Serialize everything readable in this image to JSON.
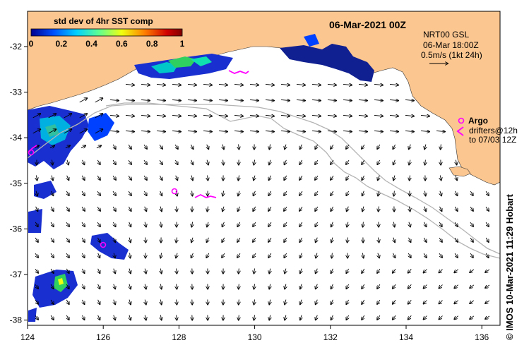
{
  "title": "06-Mar-2021 00Z",
  "colorbar": {
    "label": "std dev of 4hr SST comp",
    "ticks": [
      "0",
      "0.2",
      "0.4",
      "0.6",
      "0.8",
      "1"
    ],
    "stops": [
      "#00008f",
      "#0050ff",
      "#00d0ff",
      "#60ff90",
      "#f0ff10",
      "#ff8000",
      "#d00000",
      "#800000"
    ]
  },
  "info": {
    "line1": "NRT00 GSL",
    "line2": "06-Mar 18:00Z",
    "line3": "0.5m/s (1kt 24h)"
  },
  "argo": {
    "label": "Argo",
    "line1": "drifters@12h",
    "line2": "to 07/03 12Z"
  },
  "credit": "© IMOS 10-Mar-2021 11:29 Hobart",
  "axes": {
    "xticks": [
      "124",
      "126",
      "128",
      "130",
      "132",
      "134",
      "136"
    ],
    "yticks": [
      "-32",
      "-33",
      "-34",
      "-35",
      "-36",
      "-37",
      "-38"
    ]
  },
  "colors": {
    "land": "#fcc690",
    "ocean": "#ffffff",
    "shelf_contour": "#b4b4b4",
    "argo_marker": "#ff00ff",
    "vectors": "#000000"
  }
}
